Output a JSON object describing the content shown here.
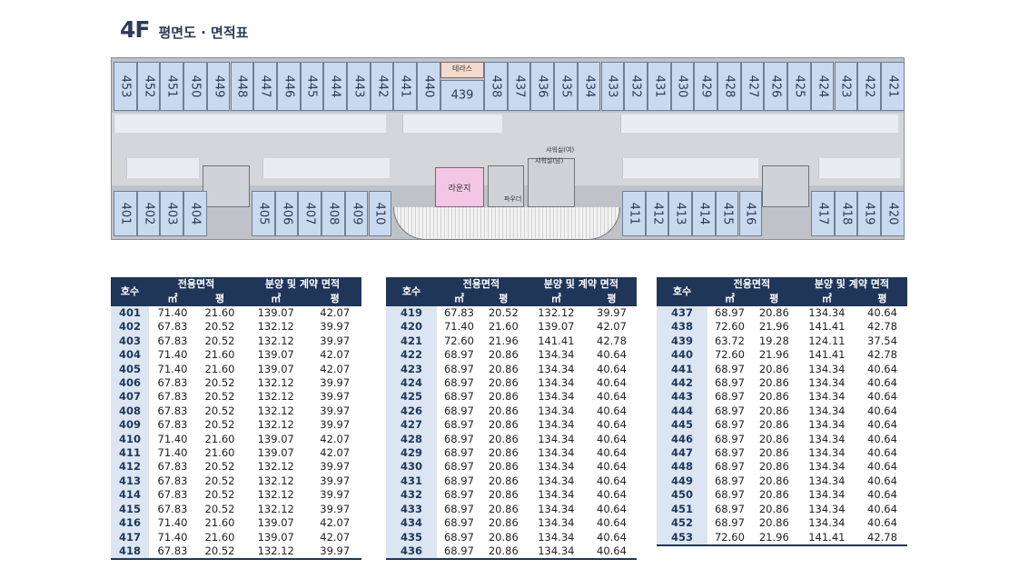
{
  "header": {
    "floor": "4F",
    "subtitle": "평면도 · 면적표"
  },
  "plan": {
    "top_rooms_left": [
      "453",
      "452",
      "451",
      "450",
      "449",
      "448",
      "447",
      "446",
      "445",
      "444",
      "443",
      "442",
      "441",
      "440"
    ],
    "top_room_center": "439",
    "top_rooms_right": [
      "438",
      "437",
      "436",
      "435",
      "434",
      "433",
      "432",
      "431",
      "430",
      "429",
      "428",
      "427",
      "426",
      "425",
      "424",
      "423",
      "422",
      "421"
    ],
    "bottom_rooms_left": [
      "401",
      "402",
      "403",
      "404"
    ],
    "bottom_rooms_mid": [
      "405",
      "406",
      "407",
      "408",
      "409",
      "410"
    ],
    "bottom_rooms_right": [
      "411",
      "412",
      "413",
      "414",
      "415",
      "416"
    ],
    "bottom_rooms_far": [
      "417",
      "418",
      "419",
      "420"
    ],
    "labels": {
      "terrace": "테라스",
      "lounge": "라운지",
      "shower_f": "샤워실(여)",
      "shower_m": "샤워실(남)",
      "small": "파우더"
    }
  },
  "table_headers": {
    "unit": "호수",
    "exclusive": "전용면적",
    "contract": "분양 및 계약 면적",
    "sqm": "㎡",
    "pyeong": "평"
  },
  "tables": [
    [
      [
        "401",
        "71.40",
        "21.60",
        "139.07",
        "42.07"
      ],
      [
        "402",
        "67.83",
        "20.52",
        "132.12",
        "39.97"
      ],
      [
        "403",
        "67.83",
        "20.52",
        "132.12",
        "39.97"
      ],
      [
        "404",
        "71.40",
        "21.60",
        "139.07",
        "42.07"
      ],
      [
        "405",
        "71.40",
        "21.60",
        "139.07",
        "42.07"
      ],
      [
        "406",
        "67.83",
        "20.52",
        "132.12",
        "39.97"
      ],
      [
        "407",
        "67.83",
        "20.52",
        "132.12",
        "39.97"
      ],
      [
        "408",
        "67.83",
        "20.52",
        "132.12",
        "39.97"
      ],
      [
        "409",
        "67.83",
        "20.52",
        "132.12",
        "39.97"
      ],
      [
        "410",
        "71.40",
        "21.60",
        "139.07",
        "42.07"
      ],
      [
        "411",
        "71.40",
        "21.60",
        "139.07",
        "42.07"
      ],
      [
        "412",
        "67.83",
        "20.52",
        "132.12",
        "39.97"
      ],
      [
        "413",
        "67.83",
        "20.52",
        "132.12",
        "39.97"
      ],
      [
        "414",
        "67.83",
        "20.52",
        "132.12",
        "39.97"
      ],
      [
        "415",
        "67.83",
        "20.52",
        "132.12",
        "39.97"
      ],
      [
        "416",
        "71.40",
        "21.60",
        "139.07",
        "42.07"
      ],
      [
        "417",
        "71.40",
        "21.60",
        "139.07",
        "42.07"
      ],
      [
        "418",
        "67.83",
        "20.52",
        "132.12",
        "39.97"
      ]
    ],
    [
      [
        "419",
        "67.83",
        "20.52",
        "132.12",
        "39.97"
      ],
      [
        "420",
        "71.40",
        "21.60",
        "139.07",
        "42.07"
      ],
      [
        "421",
        "72.60",
        "21.96",
        "141.41",
        "42.78"
      ],
      [
        "422",
        "68.97",
        "20.86",
        "134.34",
        "40.64"
      ],
      [
        "423",
        "68.97",
        "20.86",
        "134.34",
        "40.64"
      ],
      [
        "424",
        "68.97",
        "20.86",
        "134.34",
        "40.64"
      ],
      [
        "425",
        "68.97",
        "20.86",
        "134.34",
        "40.64"
      ],
      [
        "426",
        "68.97",
        "20.86",
        "134.34",
        "40.64"
      ],
      [
        "427",
        "68.97",
        "20.86",
        "134.34",
        "40.64"
      ],
      [
        "428",
        "68.97",
        "20.86",
        "134.34",
        "40.64"
      ],
      [
        "429",
        "68.97",
        "20.86",
        "134.34",
        "40.64"
      ],
      [
        "430",
        "68.97",
        "20.86",
        "134.34",
        "40.64"
      ],
      [
        "431",
        "68.97",
        "20.86",
        "134.34",
        "40.64"
      ],
      [
        "432",
        "68.97",
        "20.86",
        "134.34",
        "40.64"
      ],
      [
        "433",
        "68.97",
        "20.86",
        "134.34",
        "40.64"
      ],
      [
        "434",
        "68.97",
        "20.86",
        "134.34",
        "40.64"
      ],
      [
        "435",
        "68.97",
        "20.86",
        "134.34",
        "40.64"
      ],
      [
        "436",
        "68.97",
        "20.86",
        "134.34",
        "40.64"
      ]
    ],
    [
      [
        "437",
        "68.97",
        "20.86",
        "134.34",
        "40.64"
      ],
      [
        "438",
        "72.60",
        "21.96",
        "141.41",
        "42.78"
      ],
      [
        "439",
        "63.72",
        "19.28",
        "124.11",
        "37.54"
      ],
      [
        "440",
        "72.60",
        "21.96",
        "141.41",
        "42.78"
      ],
      [
        "441",
        "68.97",
        "20.86",
        "134.34",
        "40.64"
      ],
      [
        "442",
        "68.97",
        "20.86",
        "134.34",
        "40.64"
      ],
      [
        "443",
        "68.97",
        "20.86",
        "134.34",
        "40.64"
      ],
      [
        "444",
        "68.97",
        "20.86",
        "134.34",
        "40.64"
      ],
      [
        "445",
        "68.97",
        "20.86",
        "134.34",
        "40.64"
      ],
      [
        "446",
        "68.97",
        "20.86",
        "134.34",
        "40.64"
      ],
      [
        "447",
        "68.97",
        "20.86",
        "134.34",
        "40.64"
      ],
      [
        "448",
        "68.97",
        "20.86",
        "134.34",
        "40.64"
      ],
      [
        "449",
        "68.97",
        "20.86",
        "134.34",
        "40.64"
      ],
      [
        "450",
        "68.97",
        "20.86",
        "134.34",
        "40.64"
      ],
      [
        "451",
        "68.97",
        "20.86",
        "134.34",
        "40.64"
      ],
      [
        "452",
        "68.97",
        "20.86",
        "134.34",
        "40.64"
      ],
      [
        "453",
        "72.60",
        "21.96",
        "141.41",
        "42.78"
      ]
    ]
  ]
}
